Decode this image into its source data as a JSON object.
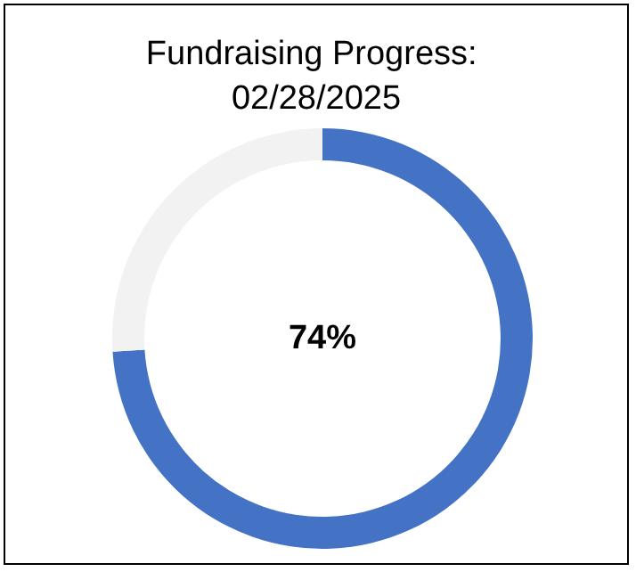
{
  "chart_data": {
    "type": "donut",
    "title": "Fundraising Progress: 02/28/2025",
    "categories": [
      null,
      null
    ],
    "values": [
      74,
      26
    ],
    "colors": [
      "#4472c4",
      "#f2f2f2"
    ],
    "value_labels": [
      "74%",
      null
    ]
  }
}
